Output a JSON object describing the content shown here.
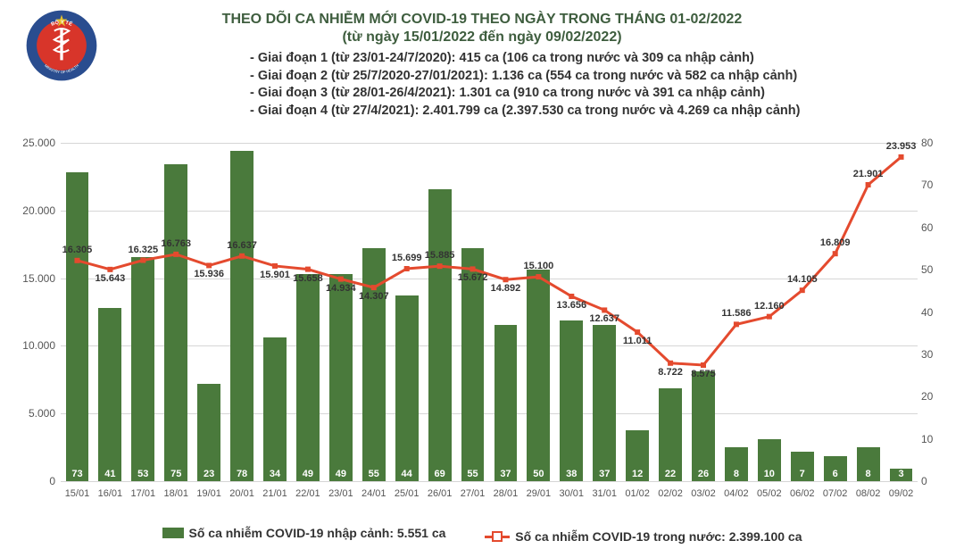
{
  "header": {
    "title_line1": "THEO DÕI CA NHIỄM MỚI COVID-19 THEO NGÀY TRONG THÁNG 01-02/2022",
    "title_line2": "(từ ngày 15/01/2022 đến ngày 09/02/2022)"
  },
  "notes": [
    "- Giai đoạn 1 (từ 23/01-24/7/2020): 415 ca (106 ca trong nước và 309 ca nhập cảnh)",
    "- Giai đoạn 2 (từ 25/7/2020-27/01/2021): 1.136 ca (554 ca trong nước và 582 ca nhập cảnh)",
    "- Giai đoạn 3 (từ 28/01-26/4/2021): 1.301 ca (910 ca trong nước và 391 ca nhập cảnh)",
    "- Giai đoạn 4 (từ 27/4/2021): 2.401.799 ca (2.397.530 ca trong nước và 4.269 ca nhập cảnh)"
  ],
  "chart": {
    "type": "bar+line",
    "dates": [
      "15/01",
      "16/01",
      "17/01",
      "18/01",
      "19/01",
      "20/01",
      "21/01",
      "22/01",
      "23/01",
      "24/01",
      "25/01",
      "26/01",
      "27/01",
      "28/01",
      "29/01",
      "30/01",
      "31/01",
      "01/02",
      "02/02",
      "03/02",
      "04/02",
      "05/02",
      "06/02",
      "07/02",
      "08/02",
      "09/02"
    ],
    "bar_values": [
      73,
      41,
      53,
      75,
      23,
      78,
      34,
      49,
      49,
      55,
      44,
      69,
      55,
      37,
      50,
      38,
      37,
      12,
      22,
      26,
      8,
      10,
      7,
      6,
      8,
      3
    ],
    "line_values": [
      16305,
      15643,
      16325,
      16763,
      15936,
      16637,
      15901,
      15658,
      14934,
      14307,
      15699,
      15885,
      15672,
      14892,
      15100,
      13656,
      12637,
      11011,
      8722,
      8575,
      11586,
      12160,
      14105,
      16809,
      21901,
      23953
    ],
    "left_ylim": [
      0,
      25000
    ],
    "left_ytick_step": 5000,
    "left_y_tick_labels": [
      "0",
      "5.000",
      "10.000",
      "15.000",
      "20.000",
      "25.000"
    ],
    "right_ylim": [
      0,
      80
    ],
    "right_ytick_step": 10,
    "right_y_tick_labels": [
      "0",
      "10",
      "20",
      "30",
      "40",
      "50",
      "60",
      "70",
      "80"
    ],
    "bar_color": "#4a7a3c",
    "line_color": "#e44a2e",
    "marker_fill": "#e44a2e",
    "grid_color": "#d6d6d6",
    "background_color": "#ffffff",
    "bar_width": 0.7,
    "line_width": 3,
    "marker_size": 5,
    "title_fontsize": 16,
    "label_fontsize": 11
  },
  "legend": {
    "bar_label": "Số ca nhiễm COVID-19 nhập cảnh: 5.551 ca",
    "line_label": "Số ca nhiễm COVID-19 trong nước: 2.399.100 ca"
  },
  "logo": {
    "text_top": "BỘ Y TẾ",
    "text_bottom": "MINISTRY OF HEALTH",
    "ring_color": "#2a4d8f",
    "star_color": "#e7c12b",
    "snake_color": "#ffffff"
  }
}
